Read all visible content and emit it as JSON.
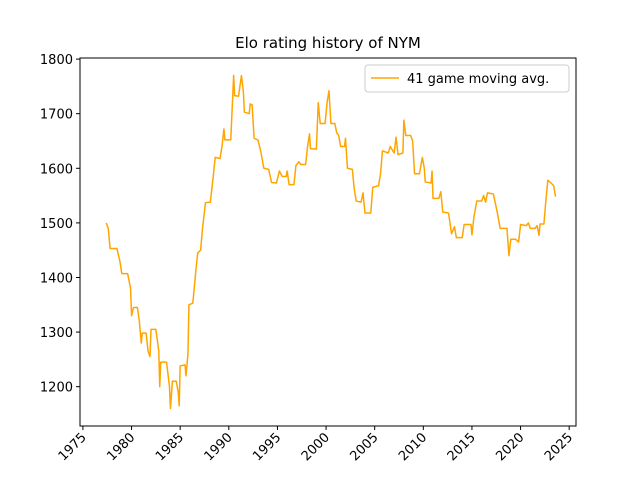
{
  "chart_data": {
    "type": "line",
    "title": "Elo rating history of NYM",
    "x": [
      1977.4,
      1977.6,
      1977.8,
      1978.5,
      1978.8,
      1979.0,
      1979.6,
      1979.9,
      1980.0,
      1980.2,
      1980.6,
      1980.8,
      1981.0,
      1981.1,
      1981.5,
      1981.7,
      1981.9,
      1982.0,
      1982.5,
      1982.8,
      1982.9,
      1983.0,
      1983.6,
      1983.9,
      1984.0,
      1984.2,
      1984.6,
      1984.8,
      1984.9,
      1985.0,
      1985.5,
      1985.6,
      1985.8,
      1985.9,
      1986.3,
      1986.6,
      1986.8,
      1987.1,
      1987.3,
      1987.6,
      1988.1,
      1988.4,
      1988.6,
      1989.1,
      1989.3,
      1989.5,
      1989.6,
      1990.2,
      1990.5,
      1990.6,
      1991.0,
      1991.3,
      1991.5,
      1991.6,
      1992.1,
      1992.2,
      1992.4,
      1992.6,
      1993.0,
      1993.3,
      1993.6,
      1994.1,
      1994.4,
      1994.9,
      1995.2,
      1995.5,
      1995.9,
      1996.0,
      1996.2,
      1996.7,
      1996.9,
      1997.2,
      1997.4,
      1997.9,
      1998.1,
      1998.3,
      1998.4,
      1999.0,
      1999.2,
      1999.4,
      1999.9,
      2000.1,
      2000.3,
      2000.5,
      2000.9,
      2001.1,
      2001.3,
      2001.5,
      2001.9,
      2002.0,
      2002.2,
      2002.7,
      2002.9,
      2003.1,
      2003.6,
      2003.8,
      2004.0,
      2004.6,
      2004.8,
      2005.4,
      2005.6,
      2005.8,
      2006.4,
      2006.6,
      2007.0,
      2007.2,
      2007.4,
      2007.9,
      2008.0,
      2008.2,
      2008.7,
      2008.9,
      2009.1,
      2009.6,
      2009.9,
      2010.1,
      2010.2,
      2010.8,
      2010.9,
      2011.0,
      2011.6,
      2011.8,
      2012.0,
      2012.6,
      2012.9,
      2013.2,
      2013.4,
      2014.0,
      2014.2,
      2014.9,
      2015.0,
      2015.2,
      2015.5,
      2016.0,
      2016.2,
      2016.4,
      2016.6,
      2017.2,
      2017.6,
      2017.9,
      2018.6,
      2018.8,
      2019.0,
      2019.5,
      2019.8,
      2020.0,
      2020.6,
      2020.8,
      2021.0,
      2021.5,
      2021.7,
      2021.9,
      2022.0,
      2022.4,
      2022.6,
      2022.8,
      2023.2,
      2023.4,
      2023.6
    ],
    "series": [
      {
        "name": "41 game moving avg.",
        "color": "#ffa500",
        "values": [
          1500,
          1490,
          1453,
          1453,
          1430,
          1407,
          1407,
          1380,
          1330,
          1345,
          1345,
          1320,
          1280,
          1298,
          1298,
          1265,
          1255,
          1305,
          1305,
          1265,
          1200,
          1245,
          1245,
          1200,
          1160,
          1210,
          1210,
          1190,
          1165,
          1238,
          1240,
          1220,
          1260,
          1350,
          1353,
          1410,
          1445,
          1450,
          1490,
          1537,
          1538,
          1585,
          1620,
          1618,
          1640,
          1672,
          1652,
          1652,
          1770,
          1733,
          1732,
          1770,
          1740,
          1703,
          1700,
          1718,
          1716,
          1655,
          1652,
          1630,
          1600,
          1598,
          1574,
          1573,
          1595,
          1585,
          1585,
          1595,
          1570,
          1570,
          1605,
          1612,
          1607,
          1607,
          1640,
          1663,
          1636,
          1635,
          1720,
          1682,
          1682,
          1720,
          1742,
          1682,
          1682,
          1665,
          1660,
          1640,
          1640,
          1655,
          1600,
          1598,
          1562,
          1540,
          1538,
          1555,
          1518,
          1518,
          1565,
          1568,
          1590,
          1632,
          1628,
          1640,
          1628,
          1657,
          1625,
          1628,
          1688,
          1660,
          1660,
          1650,
          1590,
          1590,
          1620,
          1600,
          1575,
          1573,
          1595,
          1545,
          1545,
          1557,
          1520,
          1518,
          1480,
          1493,
          1473,
          1473,
          1497,
          1497,
          1478,
          1510,
          1540,
          1540,
          1550,
          1538,
          1555,
          1553,
          1520,
          1490,
          1490,
          1440,
          1470,
          1470,
          1465,
          1497,
          1495,
          1500,
          1490,
          1490,
          1495,
          1477,
          1498,
          1498,
          1540,
          1578,
          1572,
          1568,
          1548
        ]
      }
    ],
    "xlim": [
      1974.7,
      2025.7
    ],
    "xticks": [
      1975,
      1980,
      1985,
      1990,
      1995,
      2000,
      2005,
      2010,
      2015,
      2020,
      2025
    ],
    "ylim": [
      1128,
      1802
    ],
    "yticks": [
      1200,
      1300,
      1400,
      1500,
      1600,
      1700,
      1800
    ],
    "legend": "upper right"
  }
}
